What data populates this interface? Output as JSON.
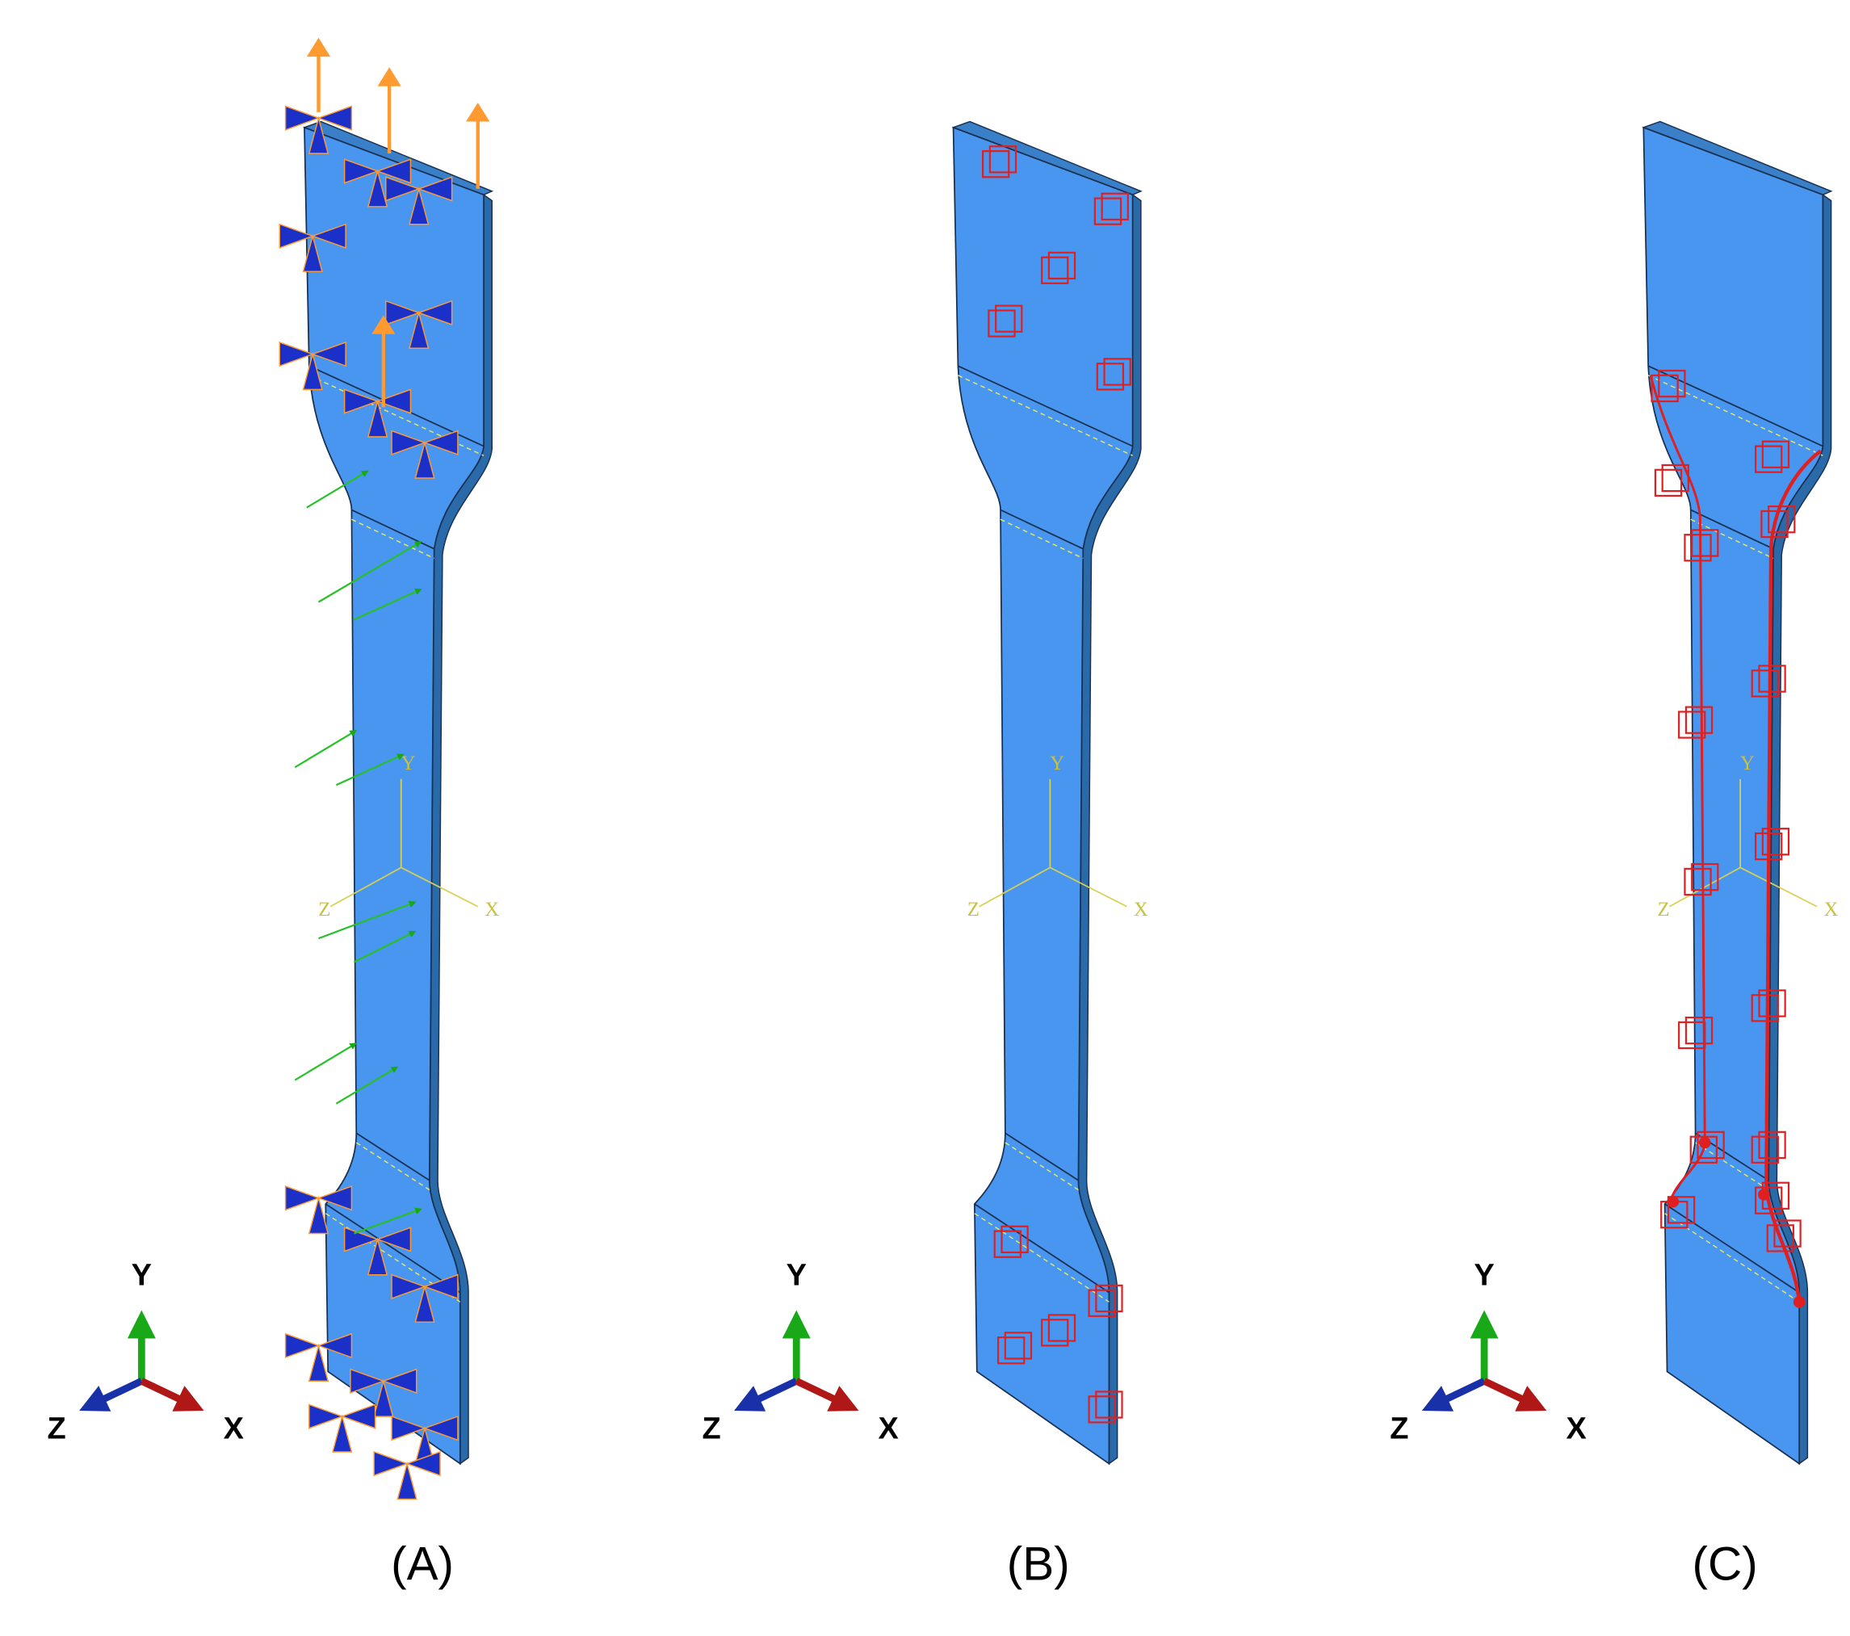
{
  "panels": [
    {
      "label": "(A)",
      "triad": {
        "y": "Y",
        "z": "Z",
        "x": "X"
      },
      "csys": {
        "y": "Y",
        "z": "Z",
        "x": "X"
      }
    },
    {
      "label": "(B)",
      "triad": {
        "y": "Y",
        "z": "Z",
        "x": "X"
      },
      "csys": {
        "y": "Y",
        "z": "Z",
        "x": "X"
      }
    },
    {
      "label": "(C)",
      "triad": {
        "y": "Y",
        "z": "Z",
        "x": "X"
      },
      "csys": {
        "y": "Y",
        "z": "Z",
        "x": "X"
      }
    }
  ]
}
